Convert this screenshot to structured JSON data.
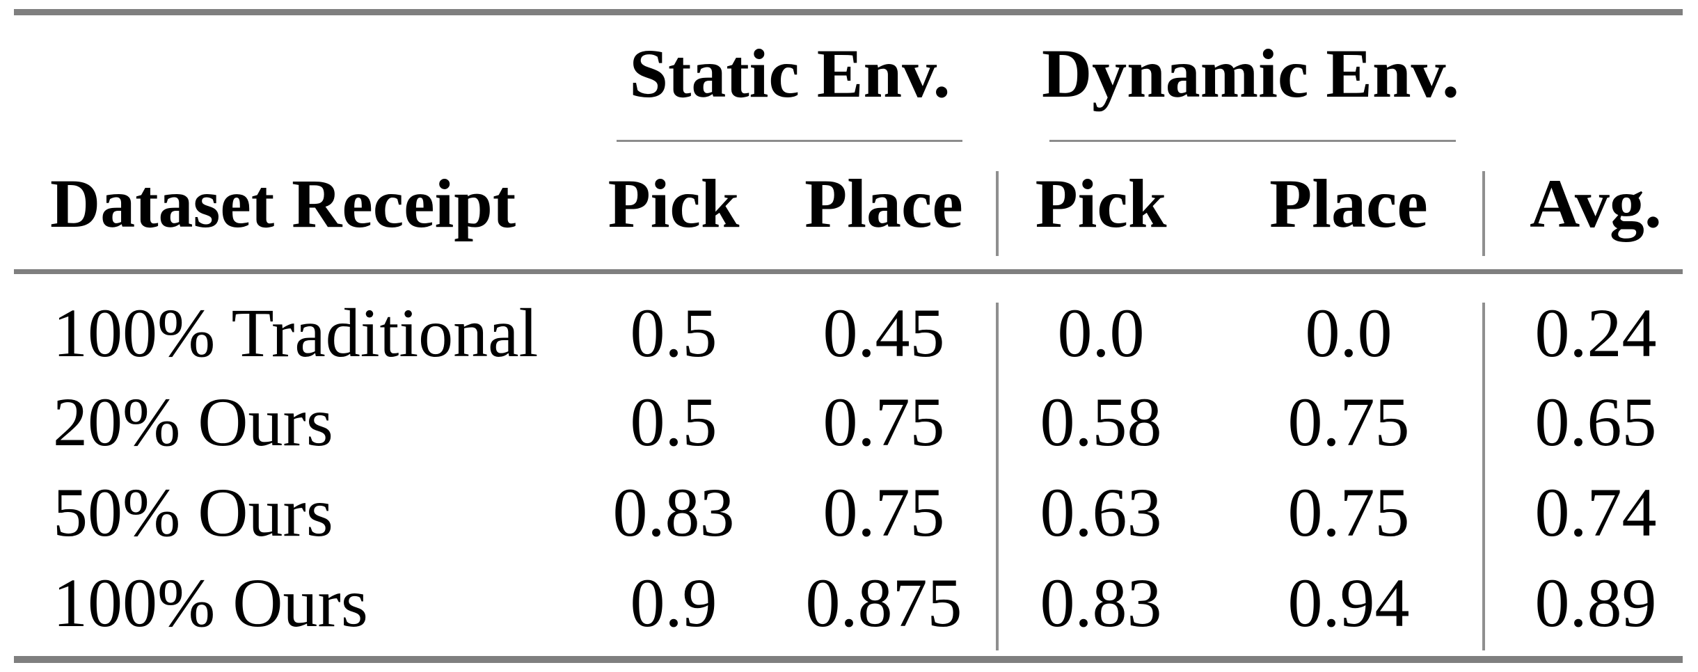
{
  "table": {
    "group_headers": [
      {
        "label": "Static Env."
      },
      {
        "label": "Dynamic Env."
      }
    ],
    "corner_header": "Dataset Receipt",
    "sub_headers": [
      "Pick",
      "Place",
      "Pick",
      "Place",
      "Avg."
    ],
    "rows": [
      {
        "label": "100% Traditional",
        "cells": [
          "0.5",
          "0.45",
          "0.0",
          "0.0",
          "0.24"
        ]
      },
      {
        "label": "20% Ours",
        "cells": [
          "0.5",
          "0.75",
          "0.58",
          "0.75",
          "0.65"
        ]
      },
      {
        "label": "50% Ours",
        "cells": [
          "0.83",
          "0.75",
          "0.63",
          "0.75",
          "0.74"
        ]
      },
      {
        "label": "100% Ours",
        "cells": [
          "0.9",
          "0.875",
          "0.83",
          "0.94",
          "0.89"
        ]
      }
    ],
    "colors": {
      "thick_rule": "#7f7f7f",
      "thin_rule": "#8c8c8c",
      "vertical_separator": "#8f8f8f",
      "text": "#000000",
      "background": "#ffffff"
    }
  },
  "chart_data": {
    "type": "table",
    "columns": [
      "Dataset Receipt",
      "Static Env. Pick",
      "Static Env. Place",
      "Dynamic Env. Pick",
      "Dynamic Env. Place",
      "Avg."
    ],
    "rows": [
      [
        "100% Traditional",
        0.5,
        0.45,
        0.0,
        0.0,
        0.24
      ],
      [
        "20% Ours",
        0.5,
        0.75,
        0.58,
        0.75,
        0.65
      ],
      [
        "50% Ours",
        0.83,
        0.75,
        0.63,
        0.75,
        0.74
      ],
      [
        "100% Ours",
        0.9,
        0.875,
        0.83,
        0.94,
        0.89
      ]
    ]
  }
}
